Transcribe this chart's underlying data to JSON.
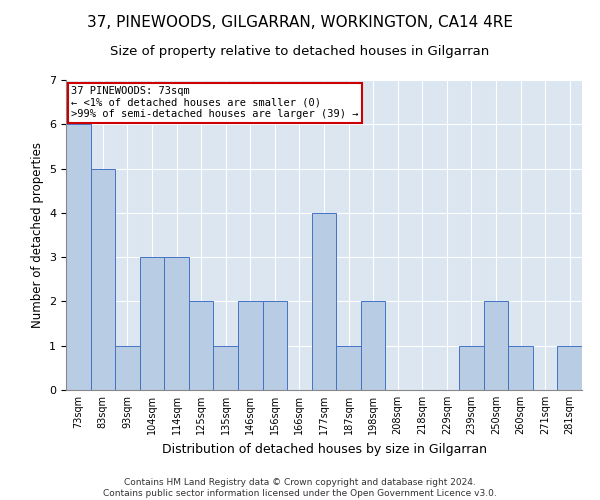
{
  "title": "37, PINEWOODS, GILGARRAN, WORKINGTON, CA14 4RE",
  "subtitle": "Size of property relative to detached houses in Gilgarran",
  "xlabel": "Distribution of detached houses by size in Gilgarran",
  "ylabel": "Number of detached properties",
  "categories": [
    "73sqm",
    "83sqm",
    "93sqm",
    "104sqm",
    "114sqm",
    "125sqm",
    "135sqm",
    "146sqm",
    "156sqm",
    "166sqm",
    "177sqm",
    "187sqm",
    "198sqm",
    "208sqm",
    "218sqm",
    "229sqm",
    "239sqm",
    "250sqm",
    "260sqm",
    "271sqm",
    "281sqm"
  ],
  "values": [
    6,
    5,
    1,
    3,
    3,
    2,
    1,
    2,
    2,
    0,
    4,
    1,
    2,
    0,
    0,
    0,
    1,
    2,
    1,
    0,
    1
  ],
  "bar_color": "#b8cce4",
  "bar_edge_color": "#4472c4",
  "background_color": "#dce6f1",
  "annotation_text": "37 PINEWOODS: 73sqm\n← <1% of detached houses are smaller (0)\n>99% of semi-detached houses are larger (39) →",
  "annotation_box_edge": "#cc0000",
  "ylim": [
    0,
    7
  ],
  "yticks": [
    0,
    1,
    2,
    3,
    4,
    5,
    6,
    7
  ],
  "footer": "Contains HM Land Registry data © Crown copyright and database right 2024.\nContains public sector information licensed under the Open Government Licence v3.0.",
  "title_fontsize": 11,
  "subtitle_fontsize": 9.5,
  "ylabel_fontsize": 8.5,
  "xlabel_fontsize": 9,
  "footer_fontsize": 6.5
}
